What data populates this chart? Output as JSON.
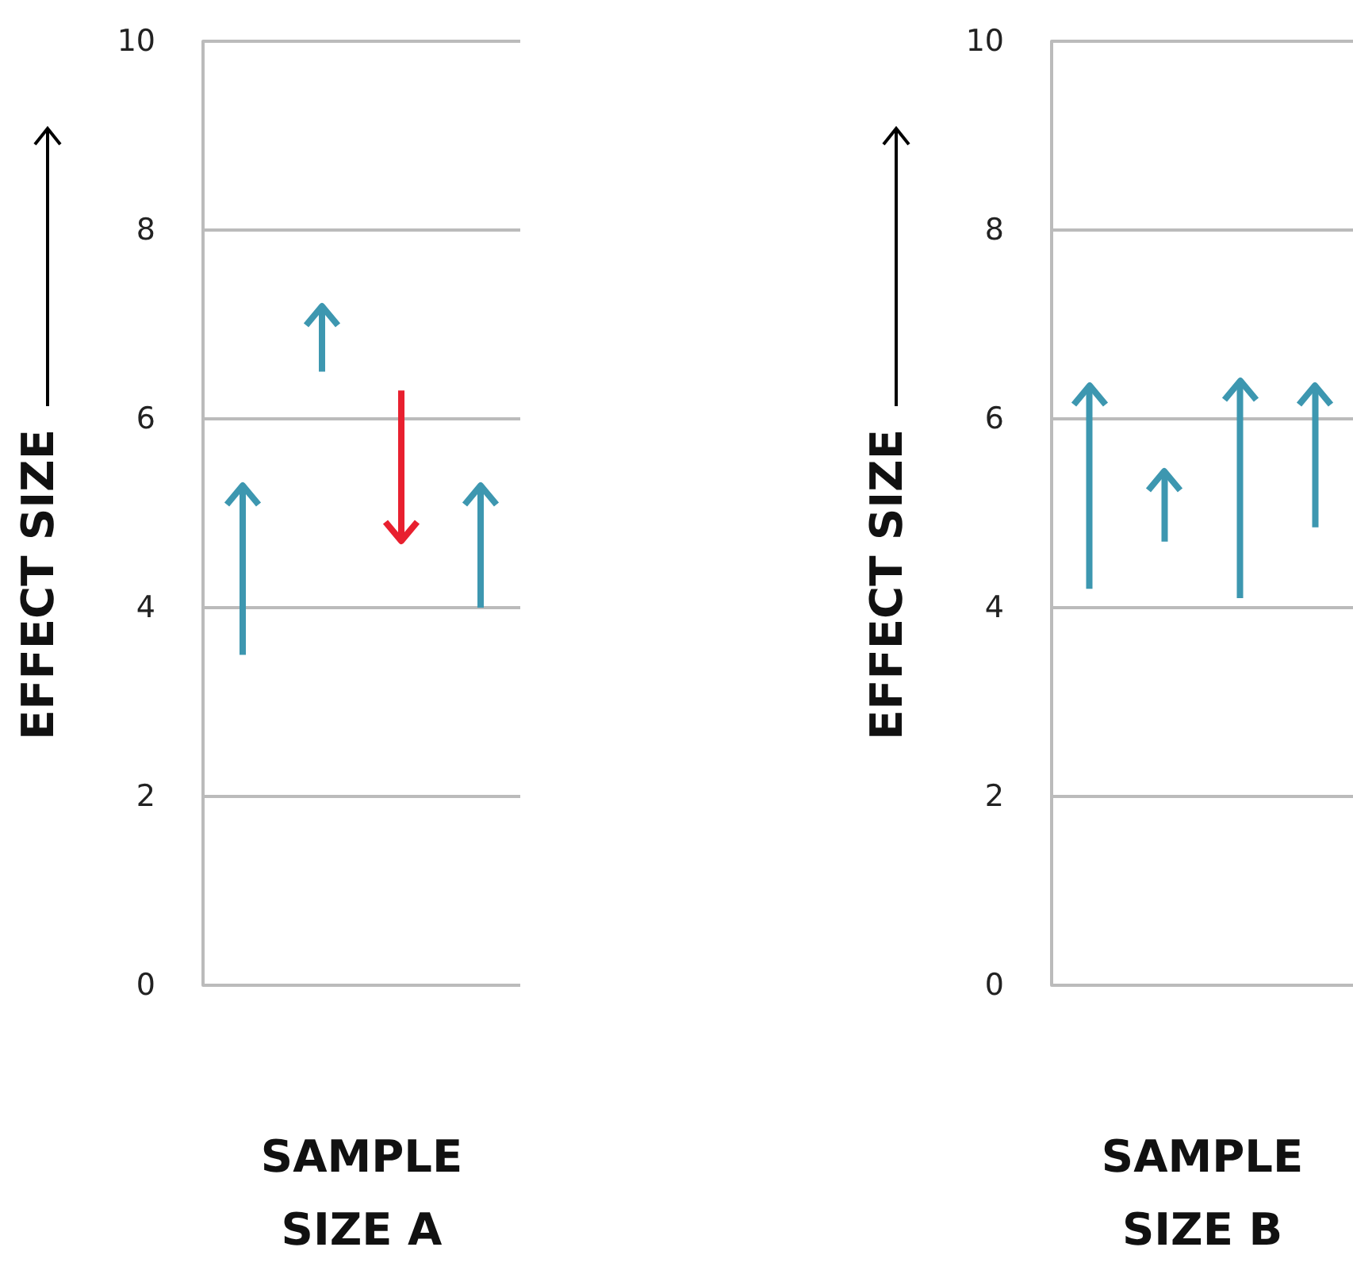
{
  "chart_data": [
    {
      "type": "bar",
      "xlabel": "SAMPLE SIZE A",
      "ylabel": "EFFECT SIZE",
      "categories": [
        null,
        null,
        null,
        null
      ],
      "base": [
        3.5,
        6.5,
        6.3,
        4.0
      ],
      "values": [
        1.8,
        0.7,
        -1.6,
        1.3
      ],
      "colors": [
        "#3d97b0",
        "#3d97b0",
        "#e8202f",
        "#3d97b0"
      ],
      "ylim": [
        0,
        10
      ],
      "yticks": [
        0,
        2,
        4,
        6,
        8,
        10
      ],
      "grid": "y",
      "tick_labels": "y"
    },
    {
      "type": "bar",
      "xlabel": "SAMPLE SIZE B",
      "ylabel": "EFFECT SIZE",
      "categories": [
        null,
        null,
        null,
        null
      ],
      "base": [
        4.2,
        4.7,
        4.1,
        4.85
      ],
      "values": [
        2.15,
        0.75,
        2.3,
        1.5
      ],
      "colors": [
        "#3d97b0",
        "#3d97b0",
        "#3d97b0",
        "#3d97b0"
      ],
      "ylim": [
        0,
        10
      ],
      "yticks": [
        0,
        2,
        4,
        6,
        8,
        10
      ],
      "grid": "y",
      "tick_labels": "y"
    }
  ]
}
